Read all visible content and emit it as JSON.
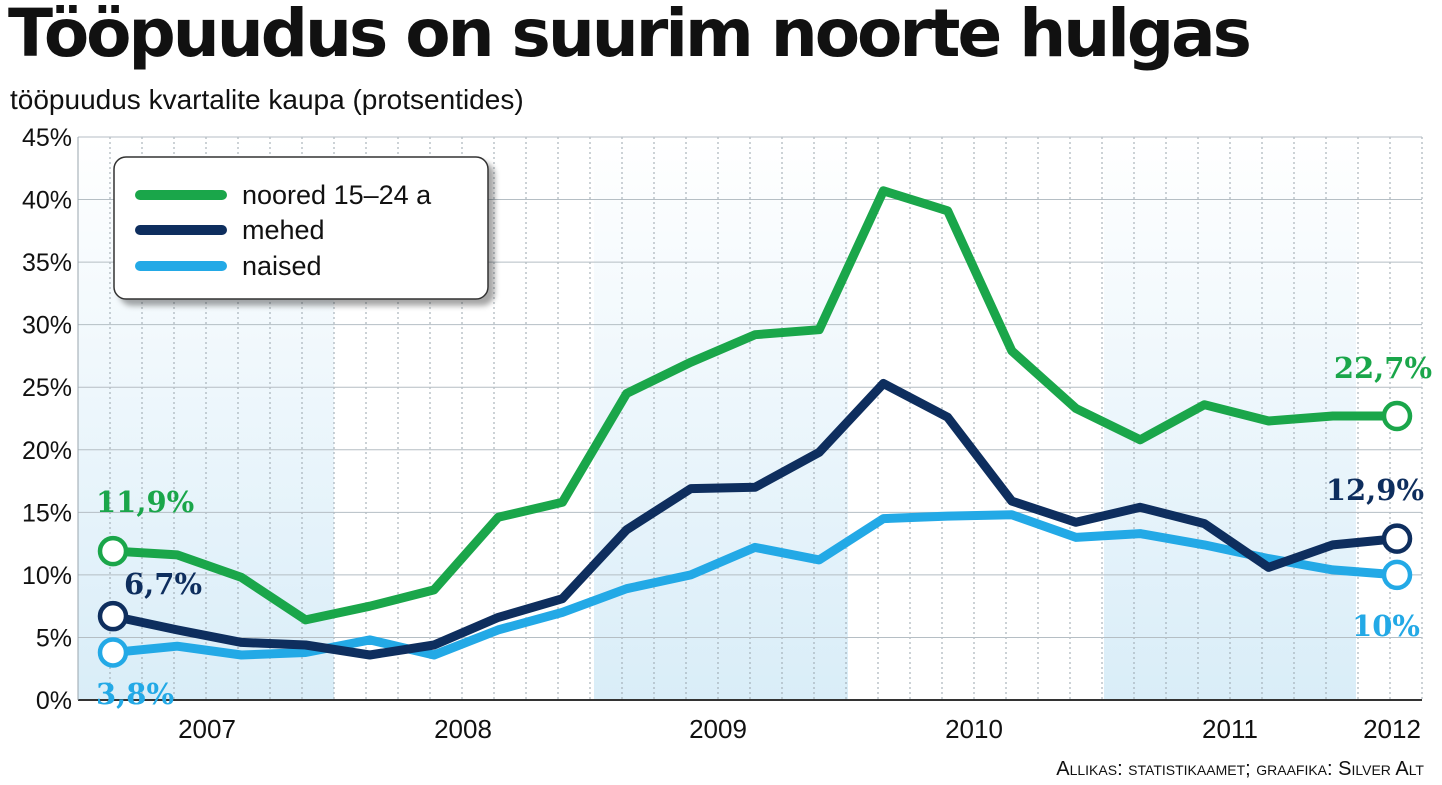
{
  "chart_data": {
    "type": "line",
    "title": "Tööpuudus on suurim noorte hulgas",
    "subtitle": "tööpuudus kvartalite kaupa (protsentides)",
    "source": "Allikas: statistikaamet; graafika: Silver Alt",
    "ylim": [
      0,
      45
    ],
    "yticks": [
      "0%",
      "5%",
      "10%",
      "15%",
      "20%",
      "25%",
      "30%",
      "35%",
      "40%",
      "45%"
    ],
    "xtick_labels": [
      "2007",
      "2008",
      "2009",
      "2010",
      "2011",
      "2012"
    ],
    "grid": true,
    "legend_placement": "top-left",
    "series": [
      {
        "name": "noored 15–24 a",
        "color": "#1aa64a",
        "values": [
          11.9,
          11.6,
          9.8,
          6.4,
          7.5,
          8.8,
          14.6,
          15.8,
          24.5,
          27.0,
          29.2,
          29.6,
          40.7,
          39.1,
          27.9,
          23.3,
          20.8,
          23.6,
          22.3,
          22.7,
          22.7
        ],
        "start_label": "11,9%",
        "end_label": "22,7%"
      },
      {
        "name": "mehed",
        "color": "#0e2e5e",
        "values": [
          6.7,
          5.6,
          4.6,
          4.4,
          3.6,
          4.4,
          6.6,
          8.1,
          13.6,
          16.9,
          17.0,
          19.8,
          25.3,
          22.6,
          15.9,
          14.2,
          15.4,
          14.1,
          10.6,
          12.4,
          12.9
        ],
        "start_label": "6,7%",
        "end_label": "12,9%"
      },
      {
        "name": "naised",
        "color": "#23a9e6",
        "values": [
          3.8,
          4.3,
          3.6,
          3.8,
          4.8,
          3.6,
          5.6,
          7.0,
          8.9,
          10.0,
          12.2,
          11.2,
          14.5,
          14.7,
          14.8,
          13.0,
          13.3,
          12.4,
          11.3,
          10.4,
          10.0
        ],
        "start_label": "3,8%",
        "end_label": "10%"
      }
    ]
  }
}
